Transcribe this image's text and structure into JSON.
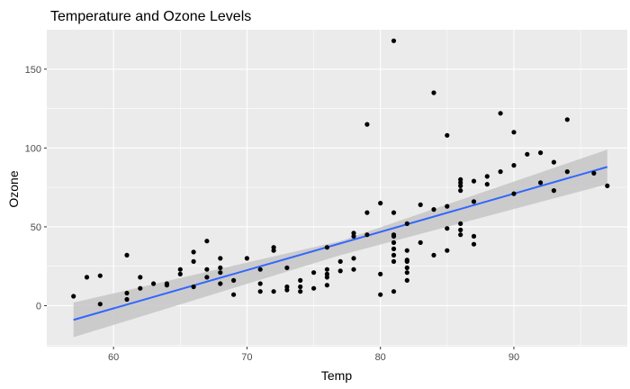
{
  "chart_data": {
    "type": "scatter",
    "title": "Temperature and Ozone Levels",
    "xlabel": "Temp",
    "ylabel": "Ozone",
    "xlim": [
      55,
      98.5
    ],
    "ylim": [
      -26,
      175
    ],
    "xticks": [
      60,
      70,
      80,
      90
    ],
    "yticks": [
      0,
      50,
      100,
      150
    ],
    "grid": true,
    "legend": "none",
    "colors": {
      "panel": "#ebebeb",
      "grid_major": "#ffffff",
      "points": "#000000",
      "fit_line": "#3366ff",
      "confidence_band": "#c8c8c8"
    },
    "points": [
      [
        57,
        6
      ],
      [
        58,
        18
      ],
      [
        59,
        1
      ],
      [
        59,
        19
      ],
      [
        61,
        32
      ],
      [
        61,
        8
      ],
      [
        61,
        4
      ],
      [
        62,
        18
      ],
      [
        62,
        11
      ],
      [
        63,
        14
      ],
      [
        64,
        13
      ],
      [
        64,
        14
      ],
      [
        65,
        23
      ],
      [
        65,
        20
      ],
      [
        66,
        34
      ],
      [
        66,
        28
      ],
      [
        66,
        12
      ],
      [
        67,
        41
      ],
      [
        67,
        23
      ],
      [
        67,
        18
      ],
      [
        68,
        30
      ],
      [
        68,
        24
      ],
      [
        68,
        21
      ],
      [
        68,
        14
      ],
      [
        69,
        16
      ],
      [
        69,
        7
      ],
      [
        70,
        30
      ],
      [
        71,
        23
      ],
      [
        71,
        14
      ],
      [
        71,
        9
      ],
      [
        72,
        37
      ],
      [
        72,
        35
      ],
      [
        72,
        9
      ],
      [
        73,
        24
      ],
      [
        73,
        12
      ],
      [
        73,
        10
      ],
      [
        74,
        16
      ],
      [
        74,
        12
      ],
      [
        74,
        9
      ],
      [
        75,
        21
      ],
      [
        75,
        11
      ],
      [
        76,
        37
      ],
      [
        76,
        23
      ],
      [
        76,
        20
      ],
      [
        76,
        18
      ],
      [
        76,
        13
      ],
      [
        77,
        28
      ],
      [
        77,
        22
      ],
      [
        78,
        46
      ],
      [
        78,
        44
      ],
      [
        78,
        30
      ],
      [
        78,
        23
      ],
      [
        79,
        115
      ],
      [
        79,
        59
      ],
      [
        79,
        45
      ],
      [
        80,
        65
      ],
      [
        80,
        20
      ],
      [
        80,
        7
      ],
      [
        81,
        168
      ],
      [
        81,
        59
      ],
      [
        81,
        45
      ],
      [
        81,
        44
      ],
      [
        81,
        40
      ],
      [
        81,
        36
      ],
      [
        81,
        32
      ],
      [
        81,
        28
      ],
      [
        81,
        9
      ],
      [
        82,
        52
      ],
      [
        82,
        35
      ],
      [
        82,
        29
      ],
      [
        82,
        28
      ],
      [
        82,
        24
      ],
      [
        82,
        21
      ],
      [
        82,
        16
      ],
      [
        83,
        64
      ],
      [
        83,
        40
      ],
      [
        84,
        135
      ],
      [
        84,
        61
      ],
      [
        84,
        32
      ],
      [
        85,
        108
      ],
      [
        85,
        63
      ],
      [
        85,
        49
      ],
      [
        85,
        35
      ],
      [
        86,
        80
      ],
      [
        86,
        78
      ],
      [
        86,
        76
      ],
      [
        86,
        73
      ],
      [
        86,
        52
      ],
      [
        86,
        48
      ],
      [
        86,
        45
      ],
      [
        87,
        79
      ],
      [
        87,
        66
      ],
      [
        87,
        44
      ],
      [
        87,
        39
      ],
      [
        88,
        82
      ],
      [
        88,
        77
      ],
      [
        89,
        122
      ],
      [
        89,
        85
      ],
      [
        90,
        110
      ],
      [
        90,
        89
      ],
      [
        90,
        71
      ],
      [
        91,
        96
      ],
      [
        92,
        97
      ],
      [
        92,
        78
      ],
      [
        93,
        91
      ],
      [
        93,
        73
      ],
      [
        94,
        118
      ],
      [
        94,
        85
      ],
      [
        96,
        84
      ],
      [
        97,
        76
      ]
    ],
    "fit": {
      "type": "linear",
      "line": [
        [
          57,
          -9
        ],
        [
          97,
          88
        ]
      ],
      "band_lower": [
        [
          57,
          -20
        ],
        [
          77,
          32
        ],
        [
          97,
          77
        ]
      ],
      "band_upper": [
        [
          57,
          2
        ],
        [
          77,
          41
        ],
        [
          97,
          99
        ]
      ]
    }
  }
}
